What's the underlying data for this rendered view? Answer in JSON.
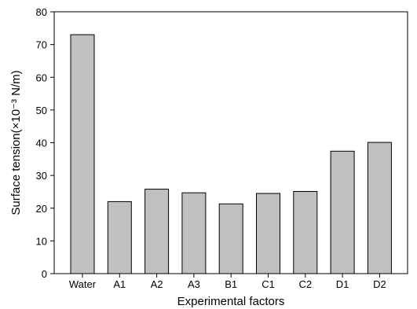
{
  "chart_data": {
    "type": "bar",
    "categories": [
      "Water",
      "A1",
      "A2",
      "A3",
      "B1",
      "C1",
      "C2",
      "D1",
      "D2"
    ],
    "values": [
      73,
      22,
      25.8,
      24.7,
      21.3,
      24.5,
      25.1,
      37.4,
      40.1
    ],
    "xlabel": "Experimental factors",
    "ylabel": "Surface tension(×10⁻³ N/m)",
    "ylim": [
      0,
      80
    ],
    "yticks": [
      0,
      10,
      20,
      30,
      40,
      50,
      60,
      70,
      80
    ],
    "grid": false,
    "legend": "none",
    "bar_color": "#c0c0c0",
    "bar_edge_color": "#000000"
  }
}
